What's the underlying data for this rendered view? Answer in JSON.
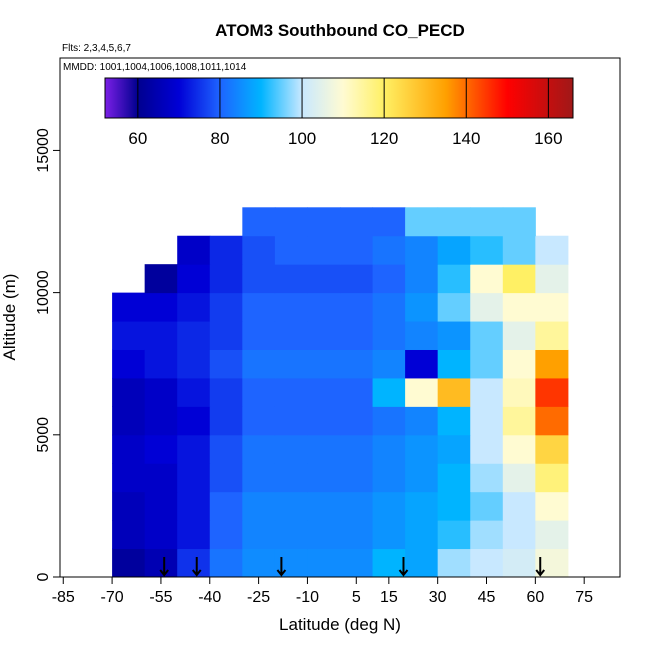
{
  "chart_data": {
    "type": "heatmap",
    "title": "ATOM3 Southbound CO_PECD",
    "subtitle": "Flts: 2,3,4,5,6,7",
    "annotation": "MMDD: 1001,1004,1006,1008,1011,1014",
    "x_label": "Latitude (deg N)",
    "y_label": "Altitude (m)",
    "xlim": [
      -86,
      86
    ],
    "ylim": [
      0,
      18250
    ],
    "xticks": [
      -85,
      -70,
      -55,
      -40,
      -25,
      -10,
      5,
      15,
      30,
      45,
      60,
      75
    ],
    "yticks": [
      0,
      5000,
      10000,
      15000
    ],
    "lat_edges": [
      -70,
      -60,
      -50,
      -40,
      -30,
      -20,
      -10,
      0,
      10,
      20,
      30,
      40,
      50,
      60,
      70
    ],
    "alt_edges": [
      0,
      1000,
      2000,
      3000,
      4000,
      5000,
      6000,
      7000,
      8000,
      9000,
      10000,
      11000,
      12000,
      13000
    ],
    "z": [
      [
        62,
        65,
        75,
        82,
        85,
        85,
        85,
        85,
        90,
        88,
        98,
        100,
        102,
        108
      ],
      [
        66,
        68,
        72,
        80,
        84,
        84,
        84,
        84,
        86,
        88,
        92,
        98,
        100,
        105
      ],
      [
        66,
        68,
        72,
        80,
        84,
        84,
        84,
        84,
        86,
        88,
        90,
        95,
        100,
        110
      ],
      [
        68,
        68,
        72,
        78,
        82,
        82,
        82,
        82,
        84,
        86,
        90,
        98,
        105,
        118
      ],
      [
        68,
        70,
        72,
        78,
        82,
        82,
        82,
        82,
        84,
        86,
        88,
        100,
        110,
        125
      ],
      [
        66,
        68,
        70,
        76,
        80,
        80,
        80,
        80,
        82,
        84,
        90,
        100,
        115,
        140
      ],
      [
        66,
        68,
        72,
        76,
        80,
        80,
        80,
        80,
        90,
        110,
        130,
        100,
        112,
        145
      ],
      [
        70,
        72,
        74,
        78,
        82,
        82,
        82,
        82,
        84,
        70,
        90,
        95,
        110,
        135
      ],
      [
        72,
        72,
        74,
        76,
        80,
        80,
        80,
        80,
        82,
        84,
        86,
        95,
        105,
        115
      ],
      [
        70,
        70,
        72,
        76,
        80,
        80,
        80,
        80,
        82,
        86,
        95,
        105,
        110,
        110
      ],
      [
        null,
        62,
        70,
        74,
        78,
        78,
        78,
        78,
        80,
        84,
        92,
        110,
        120,
        105
      ],
      [
        null,
        null,
        68,
        74,
        78,
        80,
        80,
        80,
        82,
        84,
        88,
        92,
        95,
        100
      ],
      [
        null,
        null,
        null,
        null,
        80,
        80,
        80,
        80,
        80,
        95,
        95,
        95,
        95,
        null
      ]
    ],
    "colorbar_lim": [
      52,
      166
    ],
    "colorbar_ticks": [
      60,
      80,
      100,
      120,
      140,
      160
    ],
    "colorscale": [
      [
        52,
        "#7b1fe6"
      ],
      [
        60,
        "#00008f"
      ],
      [
        70,
        "#0000d6"
      ],
      [
        80,
        "#1e64ff"
      ],
      [
        90,
        "#00b4ff"
      ],
      [
        100,
        "#c8e8ff"
      ],
      [
        110,
        "#fffbd2"
      ],
      [
        120,
        "#fff064"
      ],
      [
        135,
        "#ffa000"
      ],
      [
        150,
        "#ff0000"
      ],
      [
        166,
        "#a01818"
      ]
    ],
    "arrows_lat": [
      -54,
      -44,
      -18,
      19.5,
      61.5
    ]
  }
}
